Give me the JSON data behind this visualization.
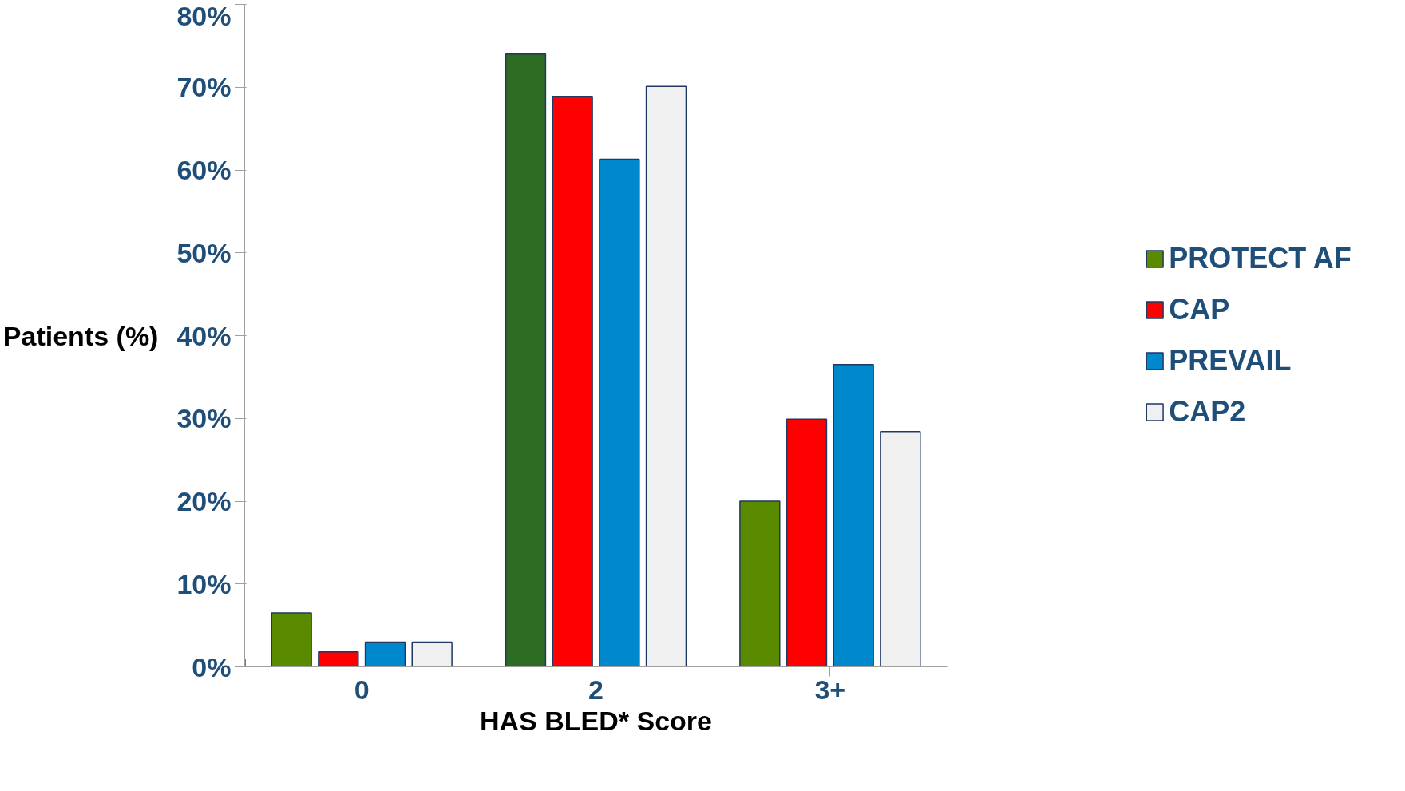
{
  "chart_data": {
    "type": "bar",
    "xlabel": "HAS BLED* Score",
    "ylabel": "Patients (%)",
    "categories": [
      "0",
      "2",
      "3+"
    ],
    "series": [
      {
        "name": "PROTECT AF",
        "color": "#5a8a00",
        "colors": [
          "#5a8a00",
          "#2e6b22",
          "#5a8a00"
        ],
        "values": [
          6.5,
          74.0,
          20.0
        ]
      },
      {
        "name": "CAP",
        "color": "#ff0000",
        "values": [
          1.8,
          68.9,
          29.9
        ]
      },
      {
        "name": "PREVAIL",
        "color": "#0088cc",
        "values": [
          3.0,
          61.3,
          36.5
        ]
      },
      {
        "name": "CAP2",
        "color": "#f0f0f0",
        "values": [
          3.0,
          70.1,
          28.4
        ]
      }
    ],
    "ylim": [
      0,
      80
    ],
    "yticks": [
      {
        "value": 0,
        "label": "0%"
      },
      {
        "value": 10,
        "label": "10%"
      },
      {
        "value": 20,
        "label": "20%"
      },
      {
        "value": 30,
        "label": "30%"
      },
      {
        "value": 40,
        "label": "40%"
      },
      {
        "value": 50,
        "label": "50%"
      },
      {
        "value": 60,
        "label": "60%"
      },
      {
        "value": 70,
        "label": "70%"
      },
      {
        "value": 80,
        "label": "80%"
      }
    ],
    "grid": false,
    "legend": "right"
  }
}
